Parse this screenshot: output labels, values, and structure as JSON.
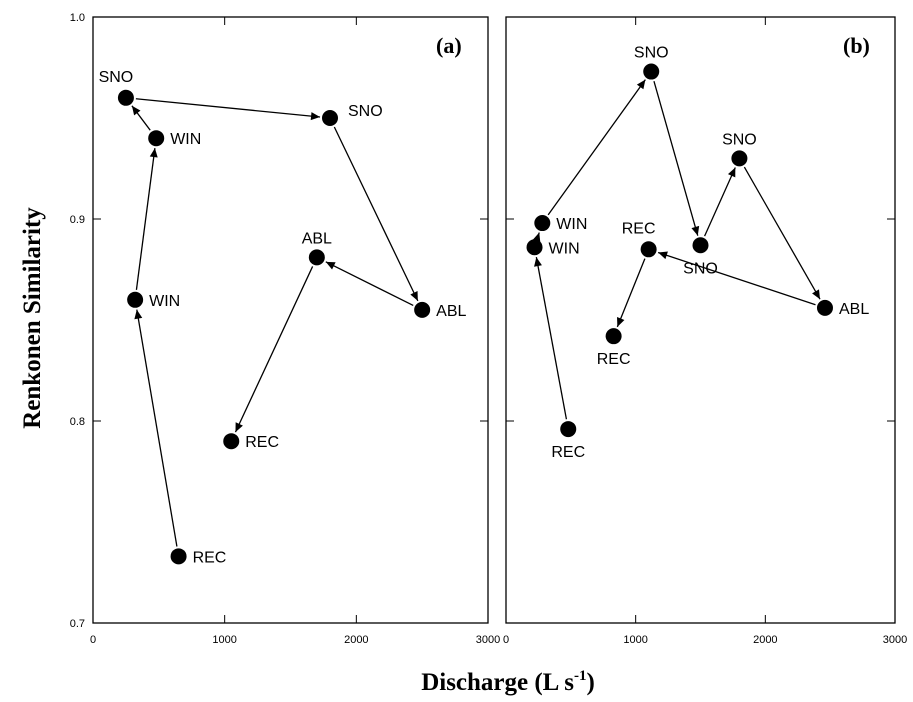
{
  "chart_data": {
    "type": "scatter",
    "ylabel": "Renkonen Similarity",
    "xlabel_main": "Discharge (L s",
    "xlabel_sup": "-1",
    "xlabel_end": ")",
    "xlim": [
      0,
      3000
    ],
    "ylim": [
      0.7,
      1.0
    ],
    "x_ticks": [
      0,
      1000,
      2000,
      3000
    ],
    "x_tick_labels": [
      "0",
      "1000",
      "2000",
      "3000"
    ],
    "y_ticks": [
      0.7,
      0.8,
      0.9,
      1.0
    ],
    "y_tick_labels": [
      "0.7",
      "0.8",
      "0.9",
      "1.0"
    ],
    "panels": [
      {
        "label": "(a)",
        "points": [
          {
            "label": "REC",
            "x": 650,
            "y": 0.733,
            "pos": "right"
          },
          {
            "label": "WIN",
            "x": 320,
            "y": 0.86,
            "pos": "right"
          },
          {
            "label": "WIN",
            "x": 480,
            "y": 0.94,
            "pos": "right"
          },
          {
            "label": "SNO",
            "x": 250,
            "y": 0.96,
            "pos": "aboveleft"
          },
          {
            "label": "SNO",
            "x": 1800,
            "y": 0.95,
            "pos": "aboveright"
          },
          {
            "label": "ABL",
            "x": 2500,
            "y": 0.855,
            "pos": "right"
          },
          {
            "label": "ABL",
            "x": 1700,
            "y": 0.881,
            "pos": "above"
          },
          {
            "label": "REC",
            "x": 1050,
            "y": 0.79,
            "pos": "right"
          }
        ]
      },
      {
        "label": "(b)",
        "points": [
          {
            "label": "REC",
            "x": 480,
            "y": 0.796,
            "pos": "below"
          },
          {
            "label": "WIN",
            "x": 220,
            "y": 0.886,
            "pos": "right"
          },
          {
            "label": "WIN",
            "x": 280,
            "y": 0.898,
            "pos": "right"
          },
          {
            "label": "SNO",
            "x": 1120,
            "y": 0.973,
            "pos": "above"
          },
          {
            "label": "SNO",
            "x": 1500,
            "y": 0.887,
            "pos": "below"
          },
          {
            "label": "SNO",
            "x": 1800,
            "y": 0.93,
            "pos": "above"
          },
          {
            "label": "ABL",
            "x": 2460,
            "y": 0.856,
            "pos": "right"
          },
          {
            "label": "REC",
            "x": 1100,
            "y": 0.885,
            "pos": "aboveleft"
          },
          {
            "label": "REC",
            "x": 830,
            "y": 0.842,
            "pos": "below"
          }
        ]
      }
    ]
  }
}
